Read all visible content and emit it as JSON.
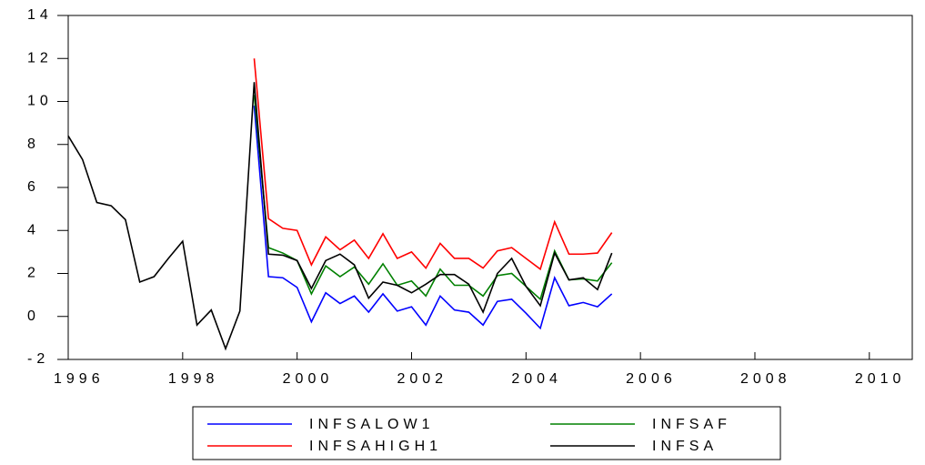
{
  "chart_data": {
    "type": "line",
    "x": [
      1996,
      1996.25,
      1996.5,
      1996.75,
      1997,
      1997.25,
      1997.5,
      1997.75,
      1998,
      1998.25,
      1998.5,
      1998.75,
      1999,
      1999.25,
      1999.5,
      1999.75,
      2000,
      2000.25,
      2000.5,
      2000.75,
      2001,
      2001.25,
      2001.5,
      2001.75,
      2002,
      2002.25,
      2002.5,
      2002.75,
      2003,
      2003.25,
      2003.5,
      2003.75,
      2004,
      2004.25,
      2004.5,
      2004.75,
      2005,
      2005.25,
      2005.5
    ],
    "series": [
      {
        "name": "INFSALOW1",
        "color": "#0000ff",
        "values": [
          null,
          null,
          null,
          null,
          null,
          null,
          null,
          null,
          null,
          null,
          null,
          null,
          null,
          9.8,
          1.85,
          1.8,
          1.35,
          -0.25,
          1.1,
          0.6,
          0.95,
          0.2,
          1.05,
          0.25,
          0.45,
          -0.4,
          0.95,
          0.3,
          0.2,
          -0.4,
          0.7,
          0.8,
          0.15,
          -0.55,
          1.8,
          0.5,
          0.65,
          0.45,
          1.05
        ]
      },
      {
        "name": "INFSAHIGH1",
        "color": "#ff0000",
        "values": [
          null,
          null,
          null,
          null,
          null,
          null,
          null,
          null,
          null,
          null,
          null,
          null,
          null,
          12.0,
          4.55,
          4.1,
          4.0,
          2.4,
          3.7,
          3.1,
          3.55,
          2.7,
          3.85,
          2.7,
          3.0,
          2.25,
          3.4,
          2.7,
          2.7,
          2.25,
          3.05,
          3.2,
          2.7,
          2.2,
          4.4,
          2.9,
          2.9,
          2.95,
          3.9
        ]
      },
      {
        "name": "INFSAF",
        "color": "#008000",
        "values": [
          null,
          null,
          null,
          null,
          null,
          null,
          null,
          null,
          null,
          null,
          null,
          null,
          null,
          10.3,
          3.2,
          2.95,
          2.6,
          1.05,
          2.35,
          1.85,
          2.3,
          1.5,
          2.45,
          1.45,
          1.65,
          0.95,
          2.2,
          1.45,
          1.45,
          0.95,
          1.9,
          2.0,
          1.4,
          0.8,
          3.05,
          1.7,
          1.75,
          1.65,
          2.5
        ]
      },
      {
        "name": "INFSA",
        "color": "#000000",
        "values": [
          8.4,
          7.3,
          5.3,
          5.15,
          4.5,
          1.6,
          1.85,
          2.7,
          3.5,
          -0.4,
          0.3,
          -1.5,
          0.25,
          10.9,
          2.9,
          2.85,
          2.6,
          1.3,
          2.6,
          2.9,
          2.4,
          0.85,
          1.6,
          1.45,
          1.1,
          1.5,
          1.95,
          1.95,
          1.5,
          0.2,
          2.0,
          2.7,
          1.4,
          0.5,
          2.95,
          1.7,
          1.8,
          1.25,
          2.95
        ]
      }
    ],
    "xlim": [
      1996,
      2010.75
    ],
    "xticks": [
      1996,
      1998,
      2000,
      2002,
      2004,
      2006,
      2008,
      2010
    ],
    "ylim": [
      -2,
      14
    ],
    "yticks": [
      -2,
      0,
      2,
      4,
      6,
      8,
      10,
      12,
      14
    ],
    "grid": false,
    "legend": "bottom"
  }
}
